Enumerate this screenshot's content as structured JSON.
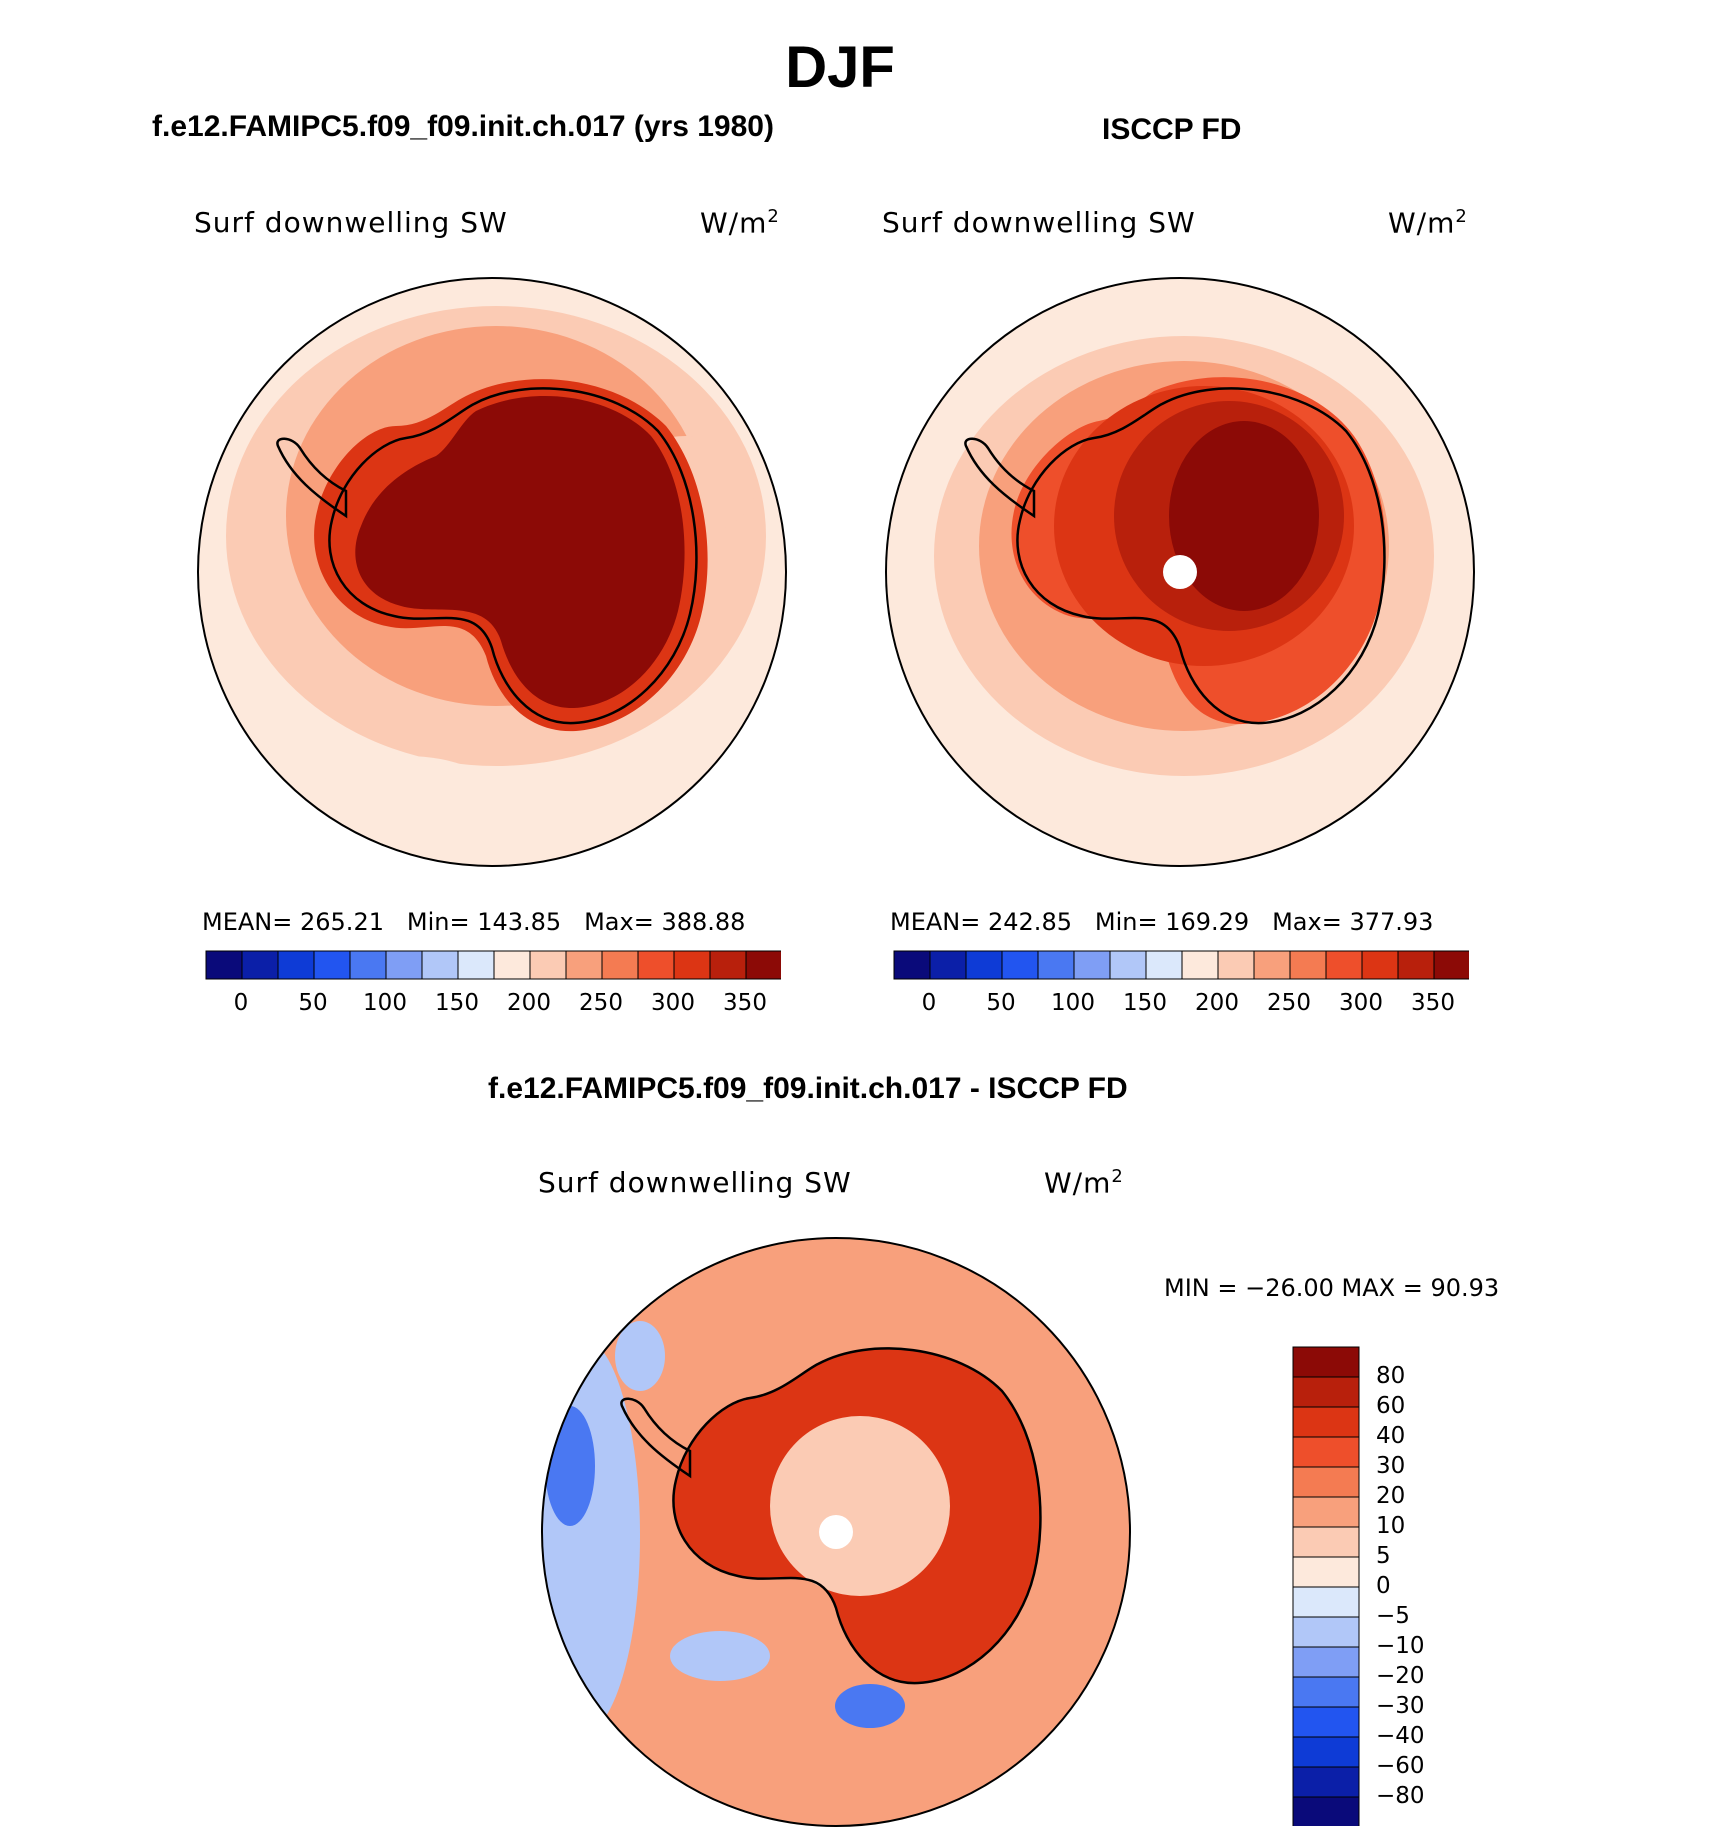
{
  "figure": {
    "title": "DJF",
    "panel_model_title": "f.e12.FAMIPC5.f09_f09.init.ch.017 (yrs 1980)",
    "panel_obs_title": "ISCCP FD",
    "panel_diff_title": "f.e12.FAMIPC5.f09_f09.init.ch.017 - ISCCP FD"
  },
  "panels": [
    {
      "variable": "Surf downwelling SW",
      "units_base": "W/m",
      "units_exp": "2",
      "mean_label": "MEAN=",
      "mean": "265.21",
      "min_label": "Min=",
      "min": "143.85",
      "max_label": "Max=",
      "max": "388.88"
    },
    {
      "variable": "Surf downwelling SW",
      "units_base": "W/m",
      "units_exp": "2",
      "mean_label": "MEAN=",
      "mean": "242.85",
      "min_label": "Min=",
      "min": "169.29",
      "max_label": "Max=",
      "max": "377.93"
    },
    {
      "variable": "Surf downwelling SW",
      "units_base": "W/m",
      "units_exp": "2",
      "minmax_text": "MIN = −26.00 MAX =  90.93"
    }
  ],
  "colorbar_abs": {
    "colors": [
      "#0a0a7a",
      "#0b1fa8",
      "#0e3bd6",
      "#2255f0",
      "#4a78f2",
      "#7f9ef5",
      "#b1c7f8",
      "#dbe8fb",
      "#fde9dc",
      "#fbcbb4",
      "#f8a07c",
      "#f47b52",
      "#ee4f2b",
      "#dc3514",
      "#b8200c",
      "#8c0a06"
    ],
    "tick_labels": [
      "0",
      "50",
      "100",
      "150",
      "200",
      "250",
      "300",
      "350"
    ]
  },
  "colorbar_diff": {
    "colors": [
      "#8c0a06",
      "#b8200c",
      "#dc3514",
      "#ee4f2b",
      "#f47b52",
      "#f8a07c",
      "#fbcbb4",
      "#fde9dc",
      "#dbe8fb",
      "#b1c7f8",
      "#7f9ef5",
      "#4a78f2",
      "#2255f0",
      "#0e3bd6",
      "#0b1fa8",
      "#0a0a7a"
    ],
    "tick_labels": [
      "80",
      "60",
      "40",
      "30",
      "20",
      "10",
      "5",
      "0",
      "−5",
      "−10",
      "−20",
      "−30",
      "−40",
      "−60",
      "−80"
    ]
  },
  "map_colors": {
    "ring_outer_model": "#fde9dc",
    "ring_mid_model": "#fbcbb4",
    "ring_inner_model": "#f8a07c",
    "coast_fill_model": "#dc3514",
    "interior_model": "#8c0a06",
    "ring_outer_obs": "#fde9dc",
    "ring_mid_obs": "#fbcbb4",
    "ring_inner_obs": "#f8a07c",
    "coast_fill_obs": "#ee4f2b",
    "mid_obs": "#dc3514",
    "interior_obs": "#b8200c",
    "core_obs": "#8c0a06",
    "diff_ocean": "#f8a07c",
    "diff_land": "#dc3514",
    "diff_center": "#fbcbb4",
    "diff_blue": "#b1c7f8",
    "diff_blue_dark": "#4a78f2",
    "coastline": "#000000",
    "pole_mask": "#ffffff"
  }
}
